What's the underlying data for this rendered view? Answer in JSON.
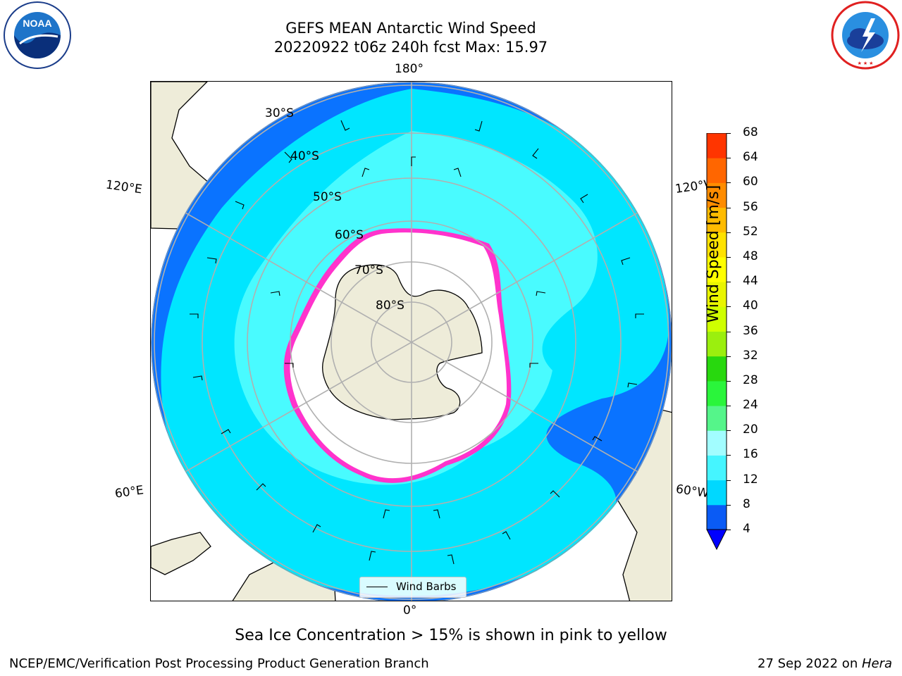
{
  "header": {
    "title_line1": "GEFS MEAN Antarctic Wind Speed",
    "title_line2": "20220922 t06z 240h fcst   Max: 15.97"
  },
  "logos": {
    "noaa": {
      "name": "noaa-logo",
      "text": "NOAA",
      "ring_text": "NATIONAL OCEANIC AND ATMOSPHERIC ADMINISTRATION · U.S. DEPARTMENT OF COMMERCE"
    },
    "nws": {
      "name": "nws-logo",
      "ring_text": "NATIONAL WEATHER SERVICE"
    }
  },
  "map": {
    "longitude_labels": {
      "top": "180°",
      "bottom": "0°",
      "left_upper": "120°E",
      "left_lower": "60°E",
      "right_upper": "120°W",
      "right_lower": "60°W"
    },
    "latitude_labels": [
      "30°S",
      "40°S",
      "50°S",
      "60°S",
      "70°S",
      "80°S"
    ],
    "legend_label": "Wind Barbs",
    "colors": {
      "land": "#eeecd9",
      "ocean_4_8": "#0a73ff",
      "ocean_8_12": "#00e6ff",
      "ocean_12_16": "#4dfcff",
      "ice": "#ffffff",
      "ice_edge_pink": "#ff33cc",
      "ice_edge_yellow": "#ffb82e"
    }
  },
  "colorbar": {
    "label": "Wind Speed [m/s]",
    "ticks": [
      "4",
      "8",
      "12",
      "16",
      "20",
      "24",
      "28",
      "32",
      "36",
      "40",
      "44",
      "48",
      "52",
      "56",
      "60",
      "64",
      "68"
    ],
    "colors": [
      "#0a5bf5",
      "#00d8ff",
      "#45f5ff",
      "#a2fdff",
      "#55f58a",
      "#2af53b",
      "#28d80e",
      "#9bef0e",
      "#cfff00",
      "#e9f500",
      "#ffff00",
      "#ffe200",
      "#ffbb00",
      "#ff8c00",
      "#ff6600",
      "#ff3500",
      "#ff0000"
    ],
    "extend_color": "#0000ff"
  },
  "footer": {
    "note": "Sea Ice Concentration > 15% is shown in pink to yellow",
    "credit": "NCEP/EMC/Verification Post Processing Product Generation Branch",
    "date": "27 Sep 2022 on ",
    "machine": "Hera"
  }
}
